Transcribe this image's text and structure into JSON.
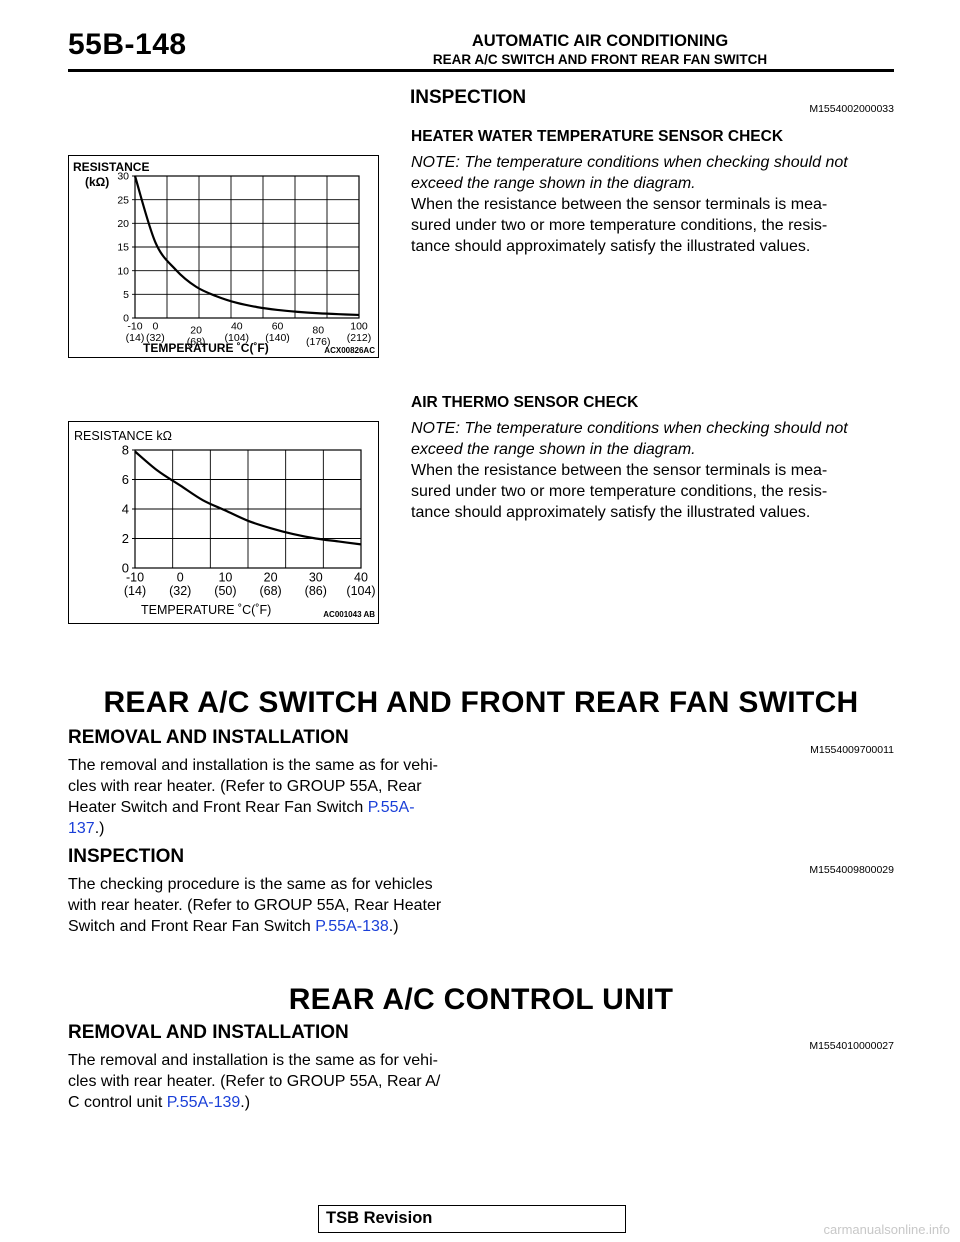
{
  "header": {
    "page_id": "55B-148",
    "group_title": "AUTOMATIC AIR CONDITIONING",
    "section_title": "REAR A/C SWITCH AND FRONT REAR FAN SWITCH"
  },
  "inspection_top": {
    "heading": "INSPECTION",
    "code": "M1554002000033",
    "heater_check": {
      "title": "HEATER WATER TEMPERATURE SENSOR CHECK",
      "note_lines": [
        "NOTE: The temperature conditions when checking should not",
        "exceed the range shown in the diagram."
      ],
      "body_lines": [
        "When the resistance between the sensor terminals is mea-",
        "sured under two or more temperature conditions, the resis-",
        "tance should approximately satisfy the illustrated values."
      ]
    },
    "air_check": {
      "title": "AIR THERMO SENSOR CHECK",
      "note_lines": [
        "NOTE: The temperature conditions when checking should not",
        "exceed the range shown in the diagram."
      ],
      "body_lines": [
        "When the resistance between the sensor terminals is mea-",
        "sured under two or more temperature conditions, the resis-",
        "tance should approximately satisfy the illustrated values."
      ]
    }
  },
  "chart_data": [
    {
      "type": "line",
      "title": "",
      "ylabel_line1": "RESISTANCE",
      "ylabel_line2": "(kΩ)",
      "xlabel": "TEMPERATURE ˚C(˚F)",
      "figure_code": "ACX00826AC",
      "ylim": [
        0,
        30
      ],
      "xlim": [
        -10,
        100
      ],
      "y_ticks": [
        "0",
        "5",
        "10",
        "15",
        "20",
        "25",
        "30"
      ],
      "x_tick_top": [
        "-10",
        "0",
        "20",
        "40",
        "60",
        "80",
        "100"
      ],
      "x_tick_bottom": [
        "(14)",
        "(32)",
        "(68)",
        "(104)",
        "(140)",
        "(176)",
        "(212)"
      ],
      "grid": true,
      "series": [
        {
          "x": [
            -10,
            0,
            10,
            20,
            30,
            40,
            50,
            60,
            70,
            80,
            90,
            100
          ],
          "y": [
            30,
            16,
            10.2,
            6.6,
            4.6,
            3.2,
            2.3,
            1.7,
            1.3,
            1.0,
            0.8,
            0.65
          ]
        }
      ]
    },
    {
      "type": "line",
      "title": "",
      "ylabel": "RESISTANCE kΩ",
      "xlabel": "TEMPERATURE ˚C(˚F)",
      "figure_code": "AC001043 AB",
      "ylim": [
        0,
        8
      ],
      "xlim": [
        -10,
        40
      ],
      "y_ticks": [
        "0",
        "2",
        "4",
        "6",
        "8"
      ],
      "x_tick_top": [
        "-10",
        "0",
        "10",
        "20",
        "30",
        "40"
      ],
      "x_tick_bottom": [
        "(14)",
        "(32)",
        "(50)",
        "(68)",
        "(86)",
        "(104)"
      ],
      "grid": true,
      "series": [
        {
          "x": [
            -10,
            -5,
            0,
            5,
            10,
            15,
            20,
            25,
            30,
            35,
            40
          ],
          "y": [
            7.9,
            6.6,
            5.6,
            4.6,
            3.9,
            3.2,
            2.7,
            2.3,
            2.0,
            1.8,
            1.6
          ]
        }
      ]
    }
  ],
  "rear_switch": {
    "title": "REAR A/C SWITCH AND FRONT REAR FAN SWITCH",
    "removal": {
      "heading": "REMOVAL AND INSTALLATION",
      "code": "M1554009700011",
      "lines": [
        "The removal and installation is the same as for vehi-",
        "cles with rear heater. (Refer to GROUP 55A, Rear"
      ],
      "line3": "Heater Switch and Front Rear Fan Switch ",
      "link_part1": "P.55A-",
      "link_part2": "137",
      "tail": ".)"
    },
    "inspection": {
      "heading": "INSPECTION",
      "code": "M1554009800029",
      "lines": [
        "The checking procedure is the same as for vehicles",
        "with rear heater. (Refer to GROUP 55A, Rear Heater"
      ],
      "line3": "Switch and Front Rear Fan Switch ",
      "link": "P.55A-138",
      "tail": ".)"
    }
  },
  "rear_control": {
    "title": "REAR A/C CONTROL UNIT",
    "removal": {
      "heading": "REMOVAL AND INSTALLATION",
      "code": "M1554010000027",
      "lines": [
        "The removal and installation is the same as for vehi-",
        "cles with rear heater. (Refer to GROUP 55A, Rear A/"
      ],
      "line3": "C control unit ",
      "link": "P.55A-139",
      "tail": ".)"
    }
  },
  "footer": {
    "label": "TSB Revision"
  },
  "watermark": "carmanualsonline.info"
}
